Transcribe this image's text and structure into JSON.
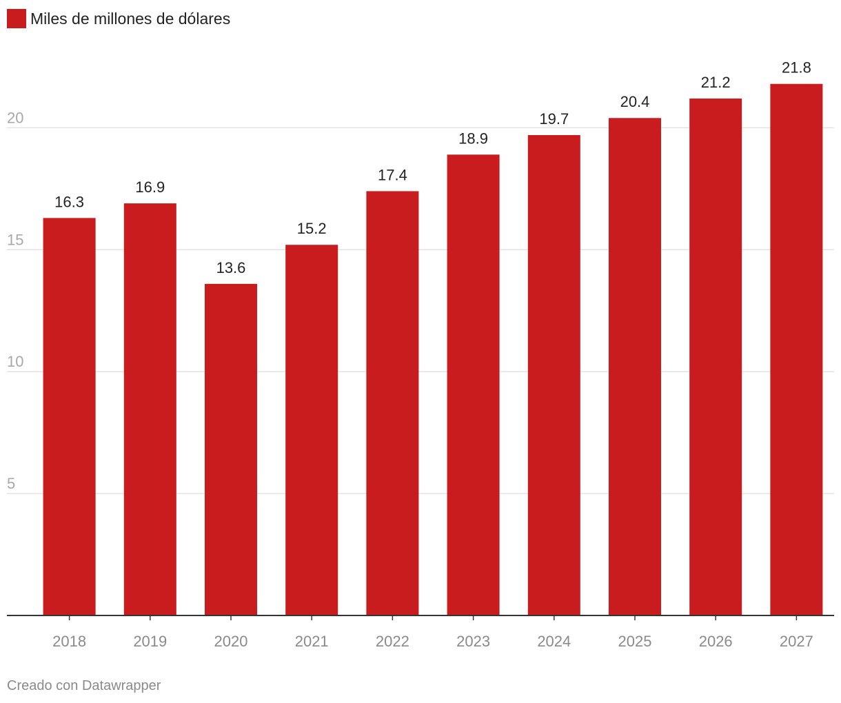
{
  "chart_data": {
    "type": "bar",
    "categories": [
      "2018",
      "2019",
      "2020",
      "2021",
      "2022",
      "2023",
      "2024",
      "2025",
      "2026",
      "2027"
    ],
    "series": [
      {
        "name": "Miles de millones de dólares",
        "values": [
          16.3,
          16.9,
          13.6,
          15.2,
          17.4,
          18.9,
          19.7,
          20.4,
          21.2,
          21.8
        ]
      }
    ],
    "title": "",
    "xlabel": "",
    "ylabel": "",
    "ylim": [
      0,
      22
    ],
    "yticks": [
      5,
      10,
      15,
      20
    ],
    "grid": true,
    "legend": "top-left",
    "bar_color": "#c81c1e"
  },
  "footer": {
    "credit": "Creado con Datawrapper"
  }
}
